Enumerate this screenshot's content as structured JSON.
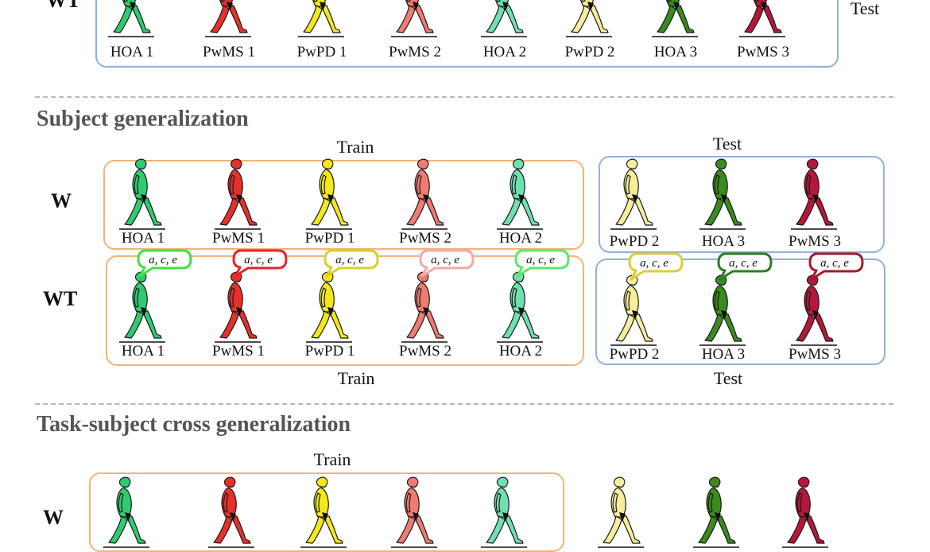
{
  "top_fragment": {
    "row_label": "WT",
    "test_label": "Test",
    "subjects": [
      {
        "name": "HOA 1",
        "color": "#2ecc71"
      },
      {
        "name": "PwMS 1",
        "color": "#e8302a"
      },
      {
        "name": "PwPD 1",
        "color": "#f3e81a"
      },
      {
        "name": "PwMS 2",
        "color": "#ef7b72"
      },
      {
        "name": "HOA 2",
        "color": "#6fe0ae"
      },
      {
        "name": "PwPD 2",
        "color": "#f6ee9a"
      },
      {
        "name": "HOA 3",
        "color": "#3a8a1c"
      },
      {
        "name": "PwMS 3",
        "color": "#b5173a"
      }
    ]
  },
  "subject_generalization": {
    "title": "Subject generalization",
    "train_label_top": "Train",
    "test_label_top": "Test",
    "train_label_bottom": "Train",
    "test_label_bottom": "Test",
    "row_w_label": "W",
    "row_wt_label": "WT",
    "bubble_text": "a, c, e",
    "train_subjects": [
      {
        "name": "HOA 1",
        "color": "#2ecc71",
        "bubble_color": "#3de23c"
      },
      {
        "name": "PwMS 1",
        "color": "#e8302a",
        "bubble_color": "#e0262c"
      },
      {
        "name": "PwPD 1",
        "color": "#f3e81a",
        "bubble_color": "#d9cf2a"
      },
      {
        "name": "PwMS 2",
        "color": "#ef7b72",
        "bubble_color": "#f2a8a6"
      },
      {
        "name": "HOA 2",
        "color": "#6fe0ae",
        "bubble_color": "#5ce86b"
      }
    ],
    "test_subjects": [
      {
        "name": "PwPD 2",
        "color": "#f6ee9a",
        "bubble_color": "#d8cf33"
      },
      {
        "name": "HOA 3",
        "color": "#3a8a1c",
        "bubble_color": "#2f7d22"
      },
      {
        "name": "PwMS 3",
        "color": "#b5173a",
        "bubble_color": "#a51a2c"
      }
    ]
  },
  "task_subject_cross": {
    "title": "Task-subject cross generalization",
    "train_label": "Train",
    "row_w_label": "W"
  }
}
